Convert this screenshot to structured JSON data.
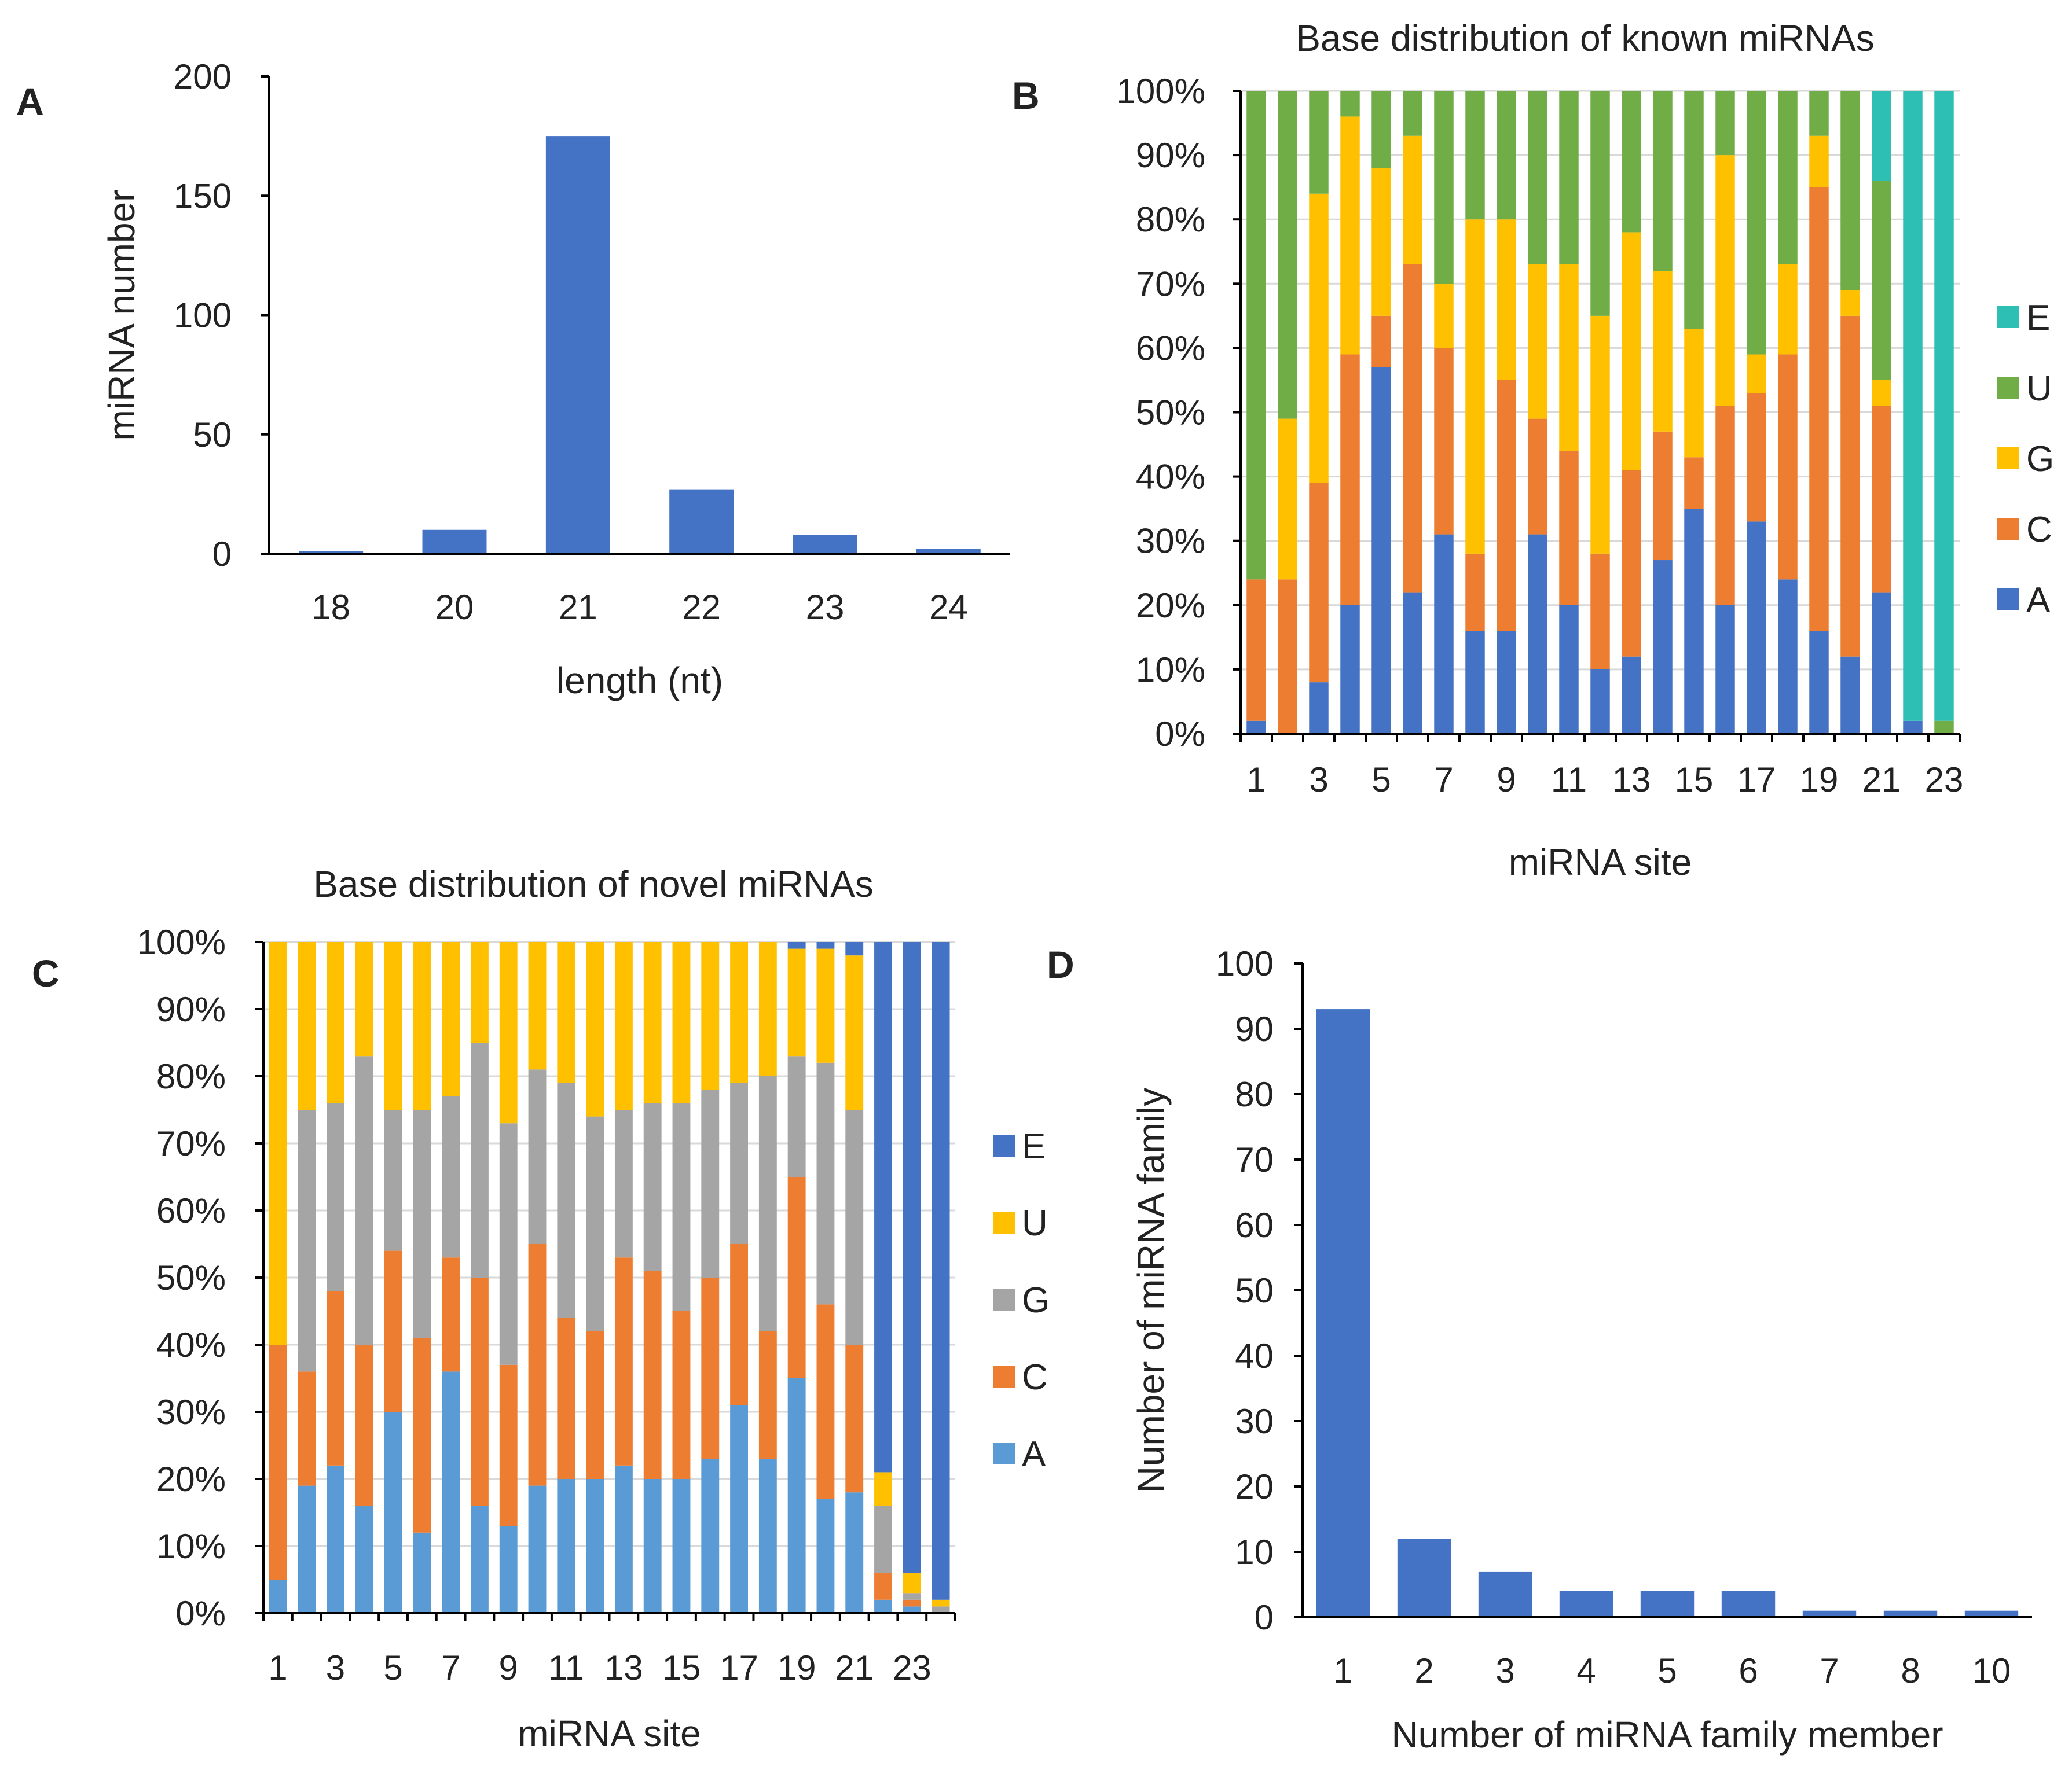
{
  "chart_data": [
    {
      "panel": "A",
      "type": "bar",
      "title": "",
      "xlabel": "length (nt)",
      "ylabel": "miRNA number",
      "ylim": [
        0,
        200
      ],
      "yticks": [
        "0",
        "50",
        "100",
        "150",
        "200"
      ],
      "categories": [
        "18",
        "20",
        "21",
        "22",
        "23",
        "24"
      ],
      "values": [
        1,
        10,
        175,
        27,
        8,
        2
      ],
      "color": "#4472C4"
    },
    {
      "panel": "B",
      "type": "bar",
      "stacked": true,
      "title": "Base distribution of known miRNAs",
      "xlabel": "miRNA site",
      "ylabel": "",
      "ylim": [
        0,
        100
      ],
      "yticks": [
        "0%",
        "10%",
        "20%",
        "30%",
        "40%",
        "50%",
        "60%",
        "70%",
        "80%",
        "90%",
        "100%"
      ],
      "categories": [
        "1",
        "2",
        "3",
        "4",
        "5",
        "6",
        "7",
        "8",
        "9",
        "10",
        "11",
        "12",
        "13",
        "14",
        "15",
        "16",
        "17",
        "18",
        "19",
        "20",
        "21",
        "22",
        "23"
      ],
      "xtick_labels": [
        "1",
        "3",
        "5",
        "7",
        "9",
        "11",
        "13",
        "15",
        "17",
        "19",
        "21",
        "23"
      ],
      "legend": [
        "E",
        "U",
        "G",
        "C",
        "A"
      ],
      "series": [
        {
          "name": "A",
          "color": "#4472C4",
          "values": [
            2,
            0,
            8,
            20,
            57,
            22,
            31,
            16,
            16,
            31,
            20,
            10,
            12,
            27,
            35,
            20,
            33,
            24,
            16,
            12,
            22,
            2,
            0
          ]
        },
        {
          "name": "C",
          "color": "#ED7D31",
          "values": [
            22,
            24,
            31,
            39,
            8,
            51,
            29,
            12,
            39,
            18,
            24,
            18,
            29,
            20,
            8,
            31,
            20,
            35,
            69,
            53,
            29,
            0,
            0
          ]
        },
        {
          "name": "G",
          "color": "#FFC000",
          "values": [
            0,
            25,
            45,
            37,
            23,
            20,
            10,
            52,
            25,
            24,
            29,
            37,
            37,
            25,
            20,
            39,
            6,
            14,
            8,
            4,
            4,
            0,
            0
          ]
        },
        {
          "name": "U",
          "color": "#70AD47",
          "values": [
            76,
            51,
            16,
            4,
            12,
            7,
            30,
            20,
            20,
            27,
            27,
            35,
            22,
            28,
            37,
            10,
            41,
            27,
            7,
            31,
            31,
            0,
            2
          ]
        },
        {
          "name": "E",
          "color": "#2EBFB4",
          "values": [
            0,
            0,
            0,
            0,
            0,
            0,
            0,
            0,
            0,
            0,
            0,
            0,
            0,
            0,
            0,
            0,
            0,
            0,
            0,
            0,
            14,
            98,
            98
          ]
        }
      ]
    },
    {
      "panel": "C",
      "type": "bar",
      "stacked": true,
      "title": "Base distribution of novel miRNAs",
      "xlabel": "miRNA site",
      "ylabel": "",
      "ylim": [
        0,
        100
      ],
      "yticks": [
        "0%",
        "10%",
        "20%",
        "30%",
        "40%",
        "50%",
        "60%",
        "70%",
        "80%",
        "90%",
        "100%"
      ],
      "categories": [
        "1",
        "2",
        "3",
        "4",
        "5",
        "6",
        "7",
        "8",
        "9",
        "10",
        "11",
        "12",
        "13",
        "14",
        "15",
        "16",
        "17",
        "18",
        "19",
        "20",
        "21",
        "22",
        "23",
        "24"
      ],
      "xtick_labels": [
        "1",
        "3",
        "5",
        "7",
        "9",
        "11",
        "13",
        "15",
        "17",
        "19",
        "21",
        "23"
      ],
      "legend": [
        "E",
        "U",
        "G",
        "C",
        "A"
      ],
      "series": [
        {
          "name": "A",
          "color": "#5B9BD5",
          "values": [
            5,
            19,
            22,
            16,
            30,
            12,
            36,
            16,
            13,
            19,
            20,
            20,
            22,
            20,
            20,
            23,
            31,
            23,
            35,
            17,
            18,
            2,
            1,
            0
          ]
        },
        {
          "name": "C",
          "color": "#ED7D31",
          "values": [
            35,
            17,
            26,
            24,
            24,
            29,
            17,
            34,
            24,
            36,
            24,
            22,
            31,
            31,
            25,
            27,
            24,
            19,
            30,
            29,
            22,
            4,
            1,
            0
          ]
        },
        {
          "name": "G",
          "color": "#A5A5A5",
          "values": [
            0,
            39,
            28,
            43,
            21,
            34,
            24,
            35,
            36,
            26,
            35,
            32,
            22,
            25,
            31,
            28,
            24,
            38,
            18,
            36,
            35,
            10,
            1,
            1
          ]
        },
        {
          "name": "U",
          "color": "#FFC000",
          "values": [
            60,
            25,
            24,
            17,
            25,
            25,
            23,
            15,
            27,
            19,
            21,
            26,
            25,
            24,
            24,
            22,
            21,
            20,
            16,
            17,
            23,
            5,
            3,
            1
          ]
        },
        {
          "name": "E",
          "color": "#4472C4",
          "values": [
            0,
            0,
            0,
            0,
            0,
            0,
            0,
            0,
            0,
            0,
            0,
            0,
            0,
            0,
            0,
            0,
            0,
            0,
            1,
            1,
            2,
            79,
            94,
            98
          ]
        }
      ]
    },
    {
      "panel": "D",
      "type": "bar",
      "title": "",
      "xlabel": "Number of miRNA family member",
      "ylabel": "Number of miRNA family",
      "ylim": [
        0,
        100
      ],
      "yticks": [
        "0",
        "10",
        "20",
        "30",
        "40",
        "50",
        "60",
        "70",
        "80",
        "90",
        "100"
      ],
      "categories": [
        "1",
        "2",
        "3",
        "4",
        "5",
        "6",
        "7",
        "8",
        "10"
      ],
      "values": [
        93,
        12,
        7,
        4,
        4,
        4,
        1,
        1,
        1
      ],
      "color": "#4472C4"
    }
  ]
}
